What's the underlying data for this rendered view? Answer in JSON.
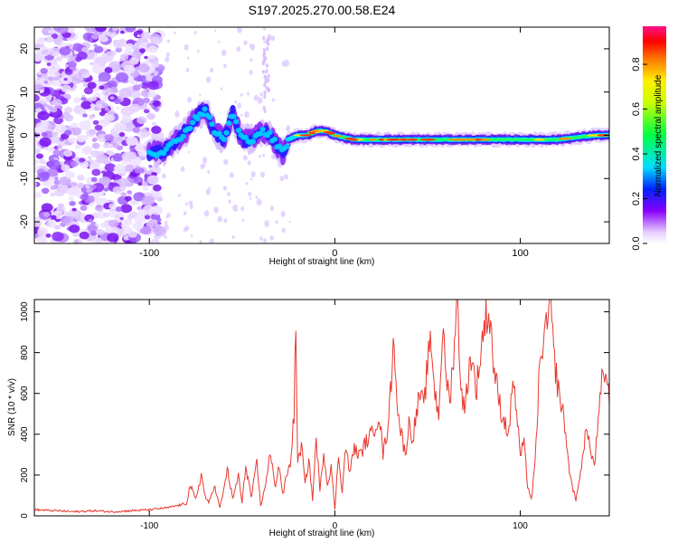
{
  "title": "S197.2025.270.00.58.E24",
  "chart_data": [
    {
      "type": "heatmap",
      "xlabel": "Height of straight line (km)",
      "ylabel": "Frequency (Hz)",
      "xlim": [
        -162,
        148
      ],
      "ylim": [
        -25,
        25
      ],
      "xticks": [
        -100,
        0,
        100
      ],
      "yticks": [
        -20,
        -10,
        0,
        10,
        20
      ],
      "colorbar": {
        "label": "Normalized spectral amplitude",
        "range": [
          0,
          0.97
        ],
        "ticks": [
          0.0,
          0.2,
          0.4,
          0.6,
          0.8
        ]
      },
      "ridge": {
        "x": [
          -100,
          -95,
          -90,
          -85,
          -80,
          -75,
          -70,
          -65,
          -60,
          -55,
          -50,
          -45,
          -40,
          -35,
          -30,
          -28,
          -25,
          -20,
          -15,
          -10,
          -5,
          0,
          10,
          20,
          40,
          60,
          80,
          100,
          120,
          140,
          148
        ],
        "y": [
          -4,
          -4,
          -3,
          -1,
          1,
          4,
          6,
          1,
          -1,
          5,
          -1,
          -1,
          1,
          0,
          -3,
          -4,
          -1,
          0,
          0,
          1,
          1,
          0,
          -1,
          -1,
          -1,
          -1,
          -1,
          -1,
          -1,
          0,
          0
        ]
      }
    },
    {
      "type": "line",
      "xlabel": "Height of straight line (km)",
      "ylabel": "SNR (10 * v/v)",
      "xlim": [
        -162,
        148
      ],
      "ylim": [
        0,
        1060
      ],
      "xticks": [
        -100,
        0,
        100
      ],
      "yticks": [
        0,
        200,
        400,
        600,
        800,
        1000
      ],
      "color": "#e8382f",
      "series": [
        {
          "x": [
            -162,
            -150,
            -140,
            -130,
            -120,
            -110,
            -100,
            -90,
            -85,
            -80,
            -78,
            -75,
            -72,
            -70,
            -68,
            -65,
            -62,
            -60,
            -58,
            -55,
            -52,
            -50,
            -48,
            -45,
            -42,
            -40,
            -38,
            -35,
            -32,
            -30,
            -28,
            -26,
            -24,
            -22,
            -21,
            -20,
            -18,
            -16,
            -14,
            -12,
            -10,
            -8,
            -6,
            -4,
            -2,
            0,
            2,
            4,
            6,
            8,
            10,
            12,
            14,
            16,
            18,
            20,
            22,
            24,
            26,
            28,
            30,
            32,
            34,
            36,
            38,
            40,
            42,
            44,
            46,
            48,
            50,
            52,
            54,
            56,
            58,
            60,
            62,
            64,
            66,
            68,
            70,
            72,
            74,
            76,
            78,
            80,
            82,
            84,
            86,
            88,
            90,
            92,
            94,
            96,
            98,
            100,
            102,
            104,
            106,
            108,
            110,
            112,
            114,
            116,
            118,
            120,
            122,
            124,
            126,
            128,
            130,
            132,
            134,
            136,
            138,
            140,
            142,
            144,
            146,
            148
          ],
          "values": [
            30,
            25,
            20,
            25,
            20,
            25,
            30,
            40,
            50,
            60,
            150,
            80,
            200,
            100,
            60,
            150,
            40,
            120,
            230,
            80,
            200,
            60,
            250,
            90,
            260,
            50,
            120,
            300,
            150,
            250,
            100,
            200,
            250,
            500,
            950,
            250,
            350,
            150,
            280,
            80,
            380,
            120,
            320,
            150,
            250,
            30,
            300,
            120,
            350,
            200,
            330,
            310,
            300,
            350,
            380,
            400,
            450,
            500,
            300,
            400,
            600,
            880,
            500,
            400,
            300,
            450,
            380,
            500,
            600,
            520,
            750,
            850,
            600,
            500,
            900,
            700,
            550,
            800,
            1060,
            650,
            500,
            700,
            800,
            600,
            750,
            900,
            1000,
            950,
            700,
            600,
            500,
            450,
            400,
            700,
            500,
            300,
            350,
            150,
            80,
            250,
            650,
            850,
            900,
            1040,
            800,
            650,
            550,
            450,
            250,
            150,
            70,
            200,
            300,
            450,
            300,
            250,
            450,
            650,
            720,
            550
          ]
        }
      ]
    }
  ]
}
